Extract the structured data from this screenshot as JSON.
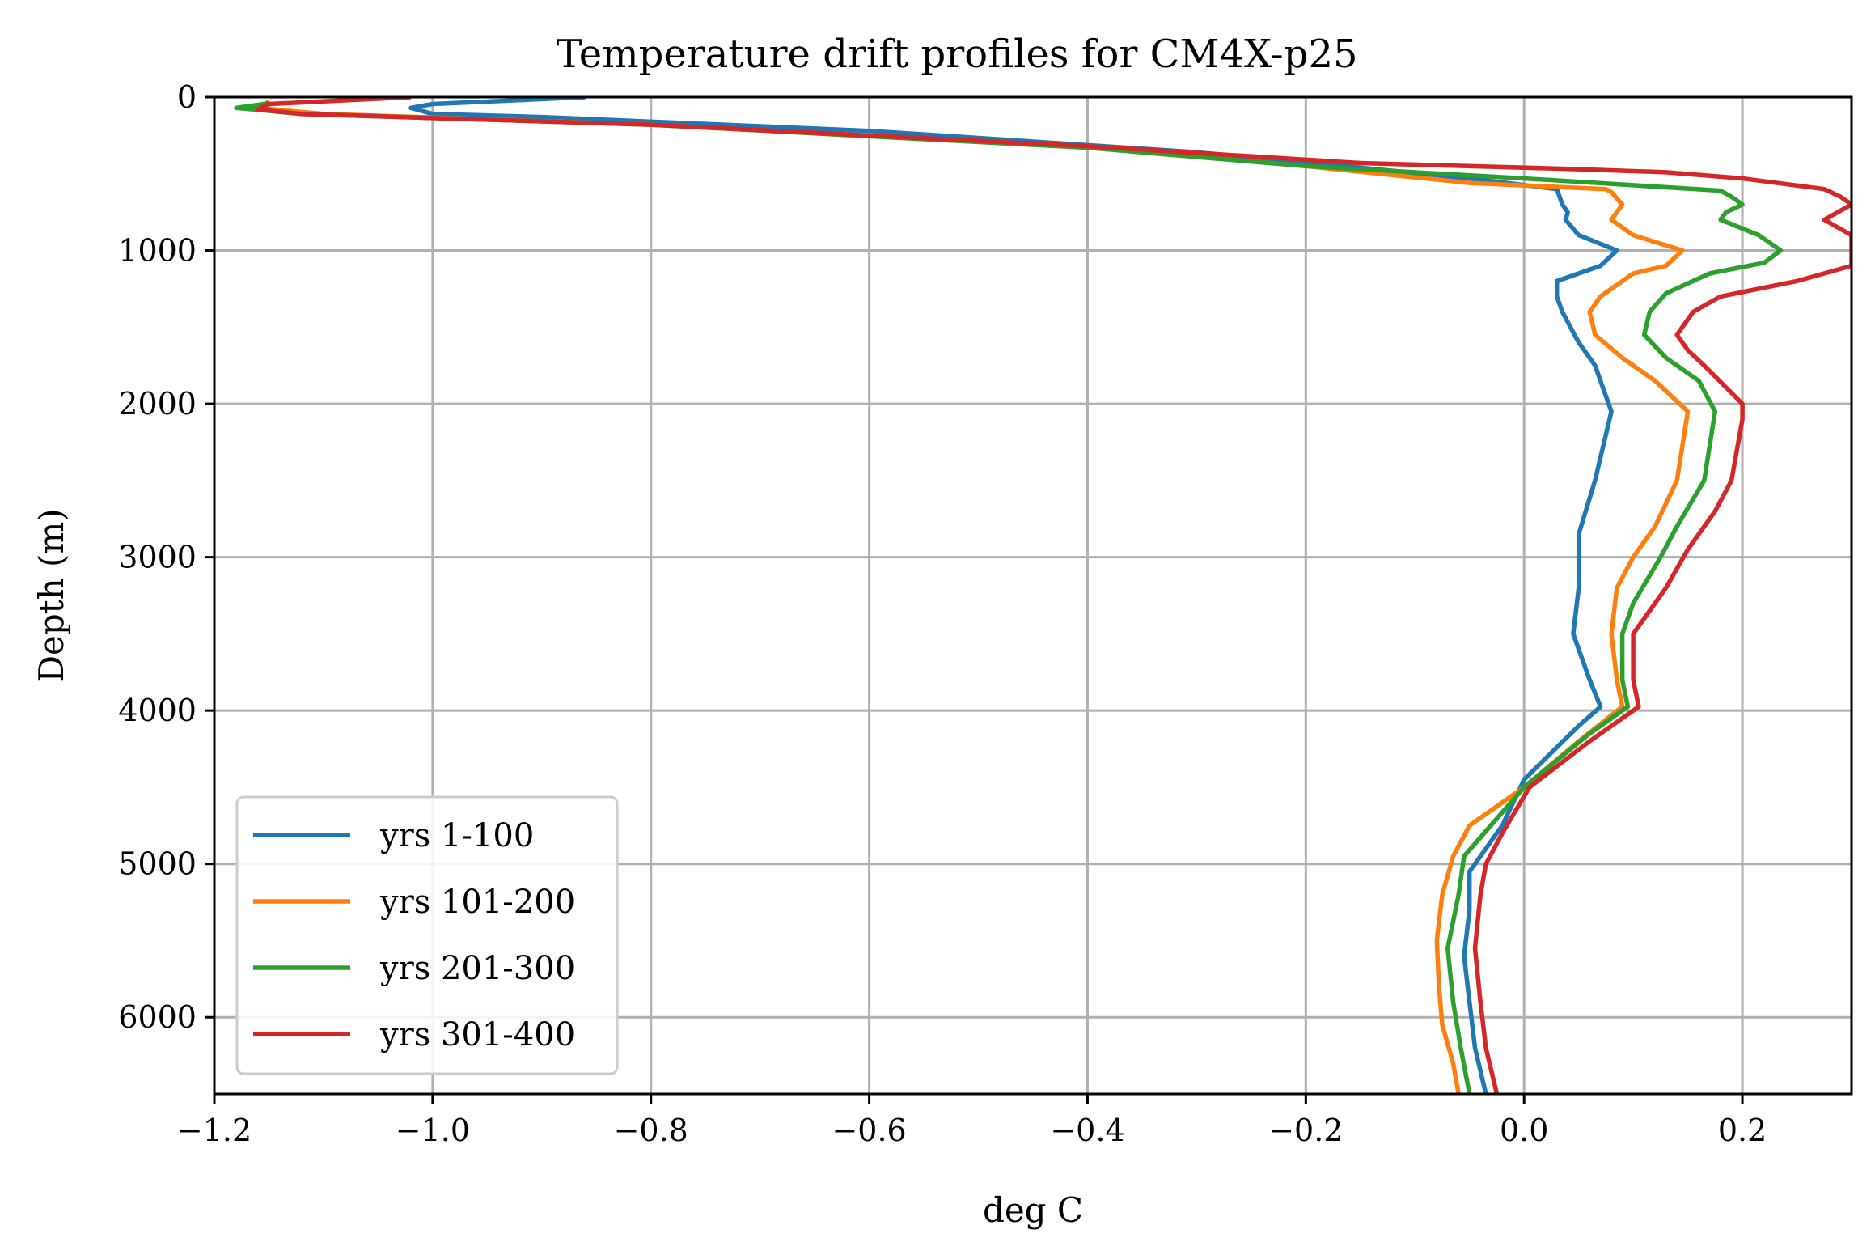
{
  "chart_data": {
    "type": "line",
    "title": "Temperature drift profiles for CM4X-p25",
    "xlabel": "deg C",
    "ylabel": "Depth (m)",
    "xlim": [
      -1.2,
      0.3
    ],
    "ylim": [
      6500,
      0
    ],
    "y_inverted": true,
    "grid": true,
    "legend_position": "lower-left",
    "x_ticks": [
      -1.2,
      -1.0,
      -0.8,
      -0.6,
      -0.4,
      -0.2,
      0.0,
      0.2
    ],
    "x_tick_labels": [
      "−1.2",
      "−1.0",
      "−0.8",
      "−0.6",
      "−0.4",
      "−0.2",
      "0.0",
      "0.2"
    ],
    "y_ticks": [
      0,
      1000,
      2000,
      3000,
      4000,
      5000,
      6000
    ],
    "y_tick_labels": [
      "0",
      "1000",
      "2000",
      "3000",
      "4000",
      "5000",
      "6000"
    ],
    "series": [
      {
        "name": "yrs 1-100",
        "color": "#1f77b4",
        "points": [
          [
            -0.86,
            0
          ],
          [
            -1.0,
            45
          ],
          [
            -1.02,
            70
          ],
          [
            -1.0,
            110
          ],
          [
            -0.9,
            130
          ],
          [
            -0.6,
            220
          ],
          [
            -0.3,
            360
          ],
          [
            -0.15,
            460
          ],
          [
            -0.05,
            530
          ],
          [
            0.03,
            600
          ],
          [
            0.035,
            700
          ],
          [
            0.04,
            750
          ],
          [
            0.038,
            800
          ],
          [
            0.05,
            900
          ],
          [
            0.085,
            1000
          ],
          [
            0.07,
            1100
          ],
          [
            0.03,
            1200
          ],
          [
            0.03,
            1300
          ],
          [
            0.035,
            1400
          ],
          [
            0.05,
            1600
          ],
          [
            0.065,
            1750
          ],
          [
            0.08,
            2050
          ],
          [
            0.065,
            2500
          ],
          [
            0.05,
            2850
          ],
          [
            0.05,
            3000
          ],
          [
            0.05,
            3200
          ],
          [
            0.045,
            3500
          ],
          [
            0.06,
            3800
          ],
          [
            0.07,
            3975
          ],
          [
            0.05,
            4100
          ],
          [
            0.0,
            4450
          ],
          [
            -0.02,
            4750
          ],
          [
            -0.05,
            5050
          ],
          [
            -0.05,
            5300
          ],
          [
            -0.055,
            5600
          ],
          [
            -0.05,
            5900
          ],
          [
            -0.045,
            6200
          ],
          [
            -0.035,
            6500
          ]
        ]
      },
      {
        "name": "yrs 101-200",
        "color": "#ff7f0e",
        "points": [
          [
            -1.15,
            30
          ],
          [
            -1.16,
            70
          ],
          [
            -1.1,
            110
          ],
          [
            -0.8,
            180
          ],
          [
            -0.4,
            330
          ],
          [
            -0.2,
            450
          ],
          [
            -0.05,
            560
          ],
          [
            0.075,
            600
          ],
          [
            0.08,
            620
          ],
          [
            0.09,
            700
          ],
          [
            0.085,
            750
          ],
          [
            0.08,
            800
          ],
          [
            0.1,
            900
          ],
          [
            0.145,
            1000
          ],
          [
            0.13,
            1100
          ],
          [
            0.1,
            1150
          ],
          [
            0.07,
            1300
          ],
          [
            0.06,
            1400
          ],
          [
            0.065,
            1550
          ],
          [
            0.09,
            1700
          ],
          [
            0.12,
            1850
          ],
          [
            0.15,
            2050
          ],
          [
            0.14,
            2500
          ],
          [
            0.12,
            2800
          ],
          [
            0.1,
            3000
          ],
          [
            0.085,
            3200
          ],
          [
            0.08,
            3500
          ],
          [
            0.085,
            3800
          ],
          [
            0.09,
            3975
          ],
          [
            0.05,
            4200
          ],
          [
            0.0,
            4500
          ],
          [
            -0.05,
            4750
          ],
          [
            -0.065,
            4950
          ],
          [
            -0.075,
            5200
          ],
          [
            -0.08,
            5500
          ],
          [
            -0.078,
            5800
          ],
          [
            -0.075,
            6050
          ],
          [
            -0.065,
            6300
          ],
          [
            -0.06,
            6500
          ]
        ]
      },
      {
        "name": "yrs 201-300",
        "color": "#2ca02c",
        "points": [
          [
            -1.15,
            40
          ],
          [
            -1.18,
            70
          ],
          [
            -1.12,
            110
          ],
          [
            -0.8,
            180
          ],
          [
            -0.4,
            330
          ],
          [
            -0.2,
            450
          ],
          [
            0.0,
            530
          ],
          [
            0.18,
            610
          ],
          [
            0.19,
            650
          ],
          [
            0.2,
            700
          ],
          [
            0.185,
            750
          ],
          [
            0.18,
            800
          ],
          [
            0.215,
            900
          ],
          [
            0.235,
            1000
          ],
          [
            0.22,
            1080
          ],
          [
            0.17,
            1150
          ],
          [
            0.13,
            1280
          ],
          [
            0.115,
            1400
          ],
          [
            0.11,
            1550
          ],
          [
            0.13,
            1700
          ],
          [
            0.16,
            1850
          ],
          [
            0.175,
            2050
          ],
          [
            0.165,
            2500
          ],
          [
            0.14,
            2800
          ],
          [
            0.125,
            3000
          ],
          [
            0.1,
            3300
          ],
          [
            0.09,
            3500
          ],
          [
            0.09,
            3800
          ],
          [
            0.095,
            3975
          ],
          [
            0.06,
            4150
          ],
          [
            0.0,
            4500
          ],
          [
            -0.055,
            4950
          ],
          [
            -0.06,
            5200
          ],
          [
            -0.07,
            5550
          ],
          [
            -0.065,
            5900
          ],
          [
            -0.058,
            6200
          ],
          [
            -0.05,
            6500
          ]
        ]
      },
      {
        "name": "yrs 301-400",
        "color": "#d62728",
        "points": [
          [
            -1.02,
            0
          ],
          [
            -1.15,
            45
          ],
          [
            -1.16,
            80
          ],
          [
            -1.12,
            110
          ],
          [
            -0.8,
            180
          ],
          [
            -0.4,
            320
          ],
          [
            -0.15,
            430
          ],
          [
            0.05,
            470
          ],
          [
            0.13,
            490
          ],
          [
            0.2,
            530
          ],
          [
            0.275,
            600
          ],
          [
            0.29,
            650
          ],
          [
            0.3,
            700
          ],
          [
            0.275,
            800
          ],
          [
            0.3,
            900
          ],
          [
            0.3,
            1100
          ],
          [
            0.25,
            1200
          ],
          [
            0.18,
            1300
          ],
          [
            0.155,
            1400
          ],
          [
            0.14,
            1550
          ],
          [
            0.15,
            1650
          ],
          [
            0.165,
            1750
          ],
          [
            0.2,
            2000
          ],
          [
            0.2,
            2100
          ],
          [
            0.19,
            2500
          ],
          [
            0.175,
            2700
          ],
          [
            0.15,
            2950
          ],
          [
            0.13,
            3200
          ],
          [
            0.1,
            3500
          ],
          [
            0.1,
            3800
          ],
          [
            0.105,
            3975
          ],
          [
            0.06,
            4200
          ],
          [
            0.005,
            4500
          ],
          [
            -0.02,
            4800
          ],
          [
            -0.035,
            5000
          ],
          [
            -0.04,
            5200
          ],
          [
            -0.045,
            5550
          ],
          [
            -0.04,
            5900
          ],
          [
            -0.035,
            6200
          ],
          [
            -0.025,
            6500
          ]
        ]
      }
    ]
  }
}
